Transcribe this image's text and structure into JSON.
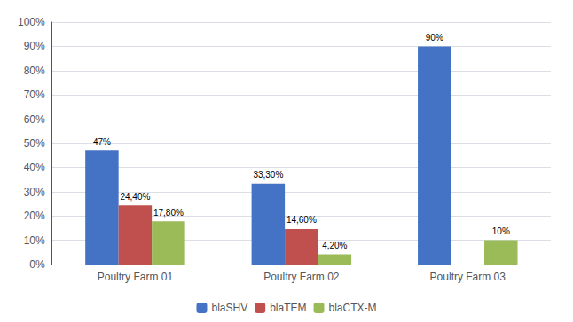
{
  "chart_data": {
    "type": "bar",
    "categories": [
      "Poultry Farm 01",
      "Poultry Farm 02",
      "Poultry Farm 03"
    ],
    "series": [
      {
        "name": "blaSHV",
        "color": "#4472C4",
        "values": [
          47,
          33.3,
          90
        ],
        "value_labels": [
          "47%",
          "33,30%",
          "90%"
        ]
      },
      {
        "name": "blaTEM",
        "color": "#C0504D",
        "values": [
          24.4,
          14.6,
          0
        ],
        "value_labels": [
          "24,40%",
          "14,60%",
          null
        ]
      },
      {
        "name": "blaCTX-M",
        "color": "#9BBB59",
        "values": [
          17.8,
          4.2,
          10
        ],
        "value_labels": [
          "17,80%",
          "4,20%",
          "10%"
        ]
      }
    ],
    "ylim": [
      0,
      100
    ],
    "yticks": [
      {
        "value": 0,
        "label": "0%"
      },
      {
        "value": 10,
        "label": "10%"
      },
      {
        "value": 20,
        "label": "20%"
      },
      {
        "value": 30,
        "label": "30%"
      },
      {
        "value": 40,
        "label": "40%"
      },
      {
        "value": 50,
        "label": "50%"
      },
      {
        "value": 60,
        "label": "60%"
      },
      {
        "value": 70,
        "label": "70%"
      },
      {
        "value": 80,
        "label": "80%"
      },
      {
        "value": 90,
        "label": "90%"
      },
      {
        "value": 100,
        "label": "100%"
      }
    ],
    "grid": true,
    "legend": "bottom",
    "data_labels": true
  }
}
